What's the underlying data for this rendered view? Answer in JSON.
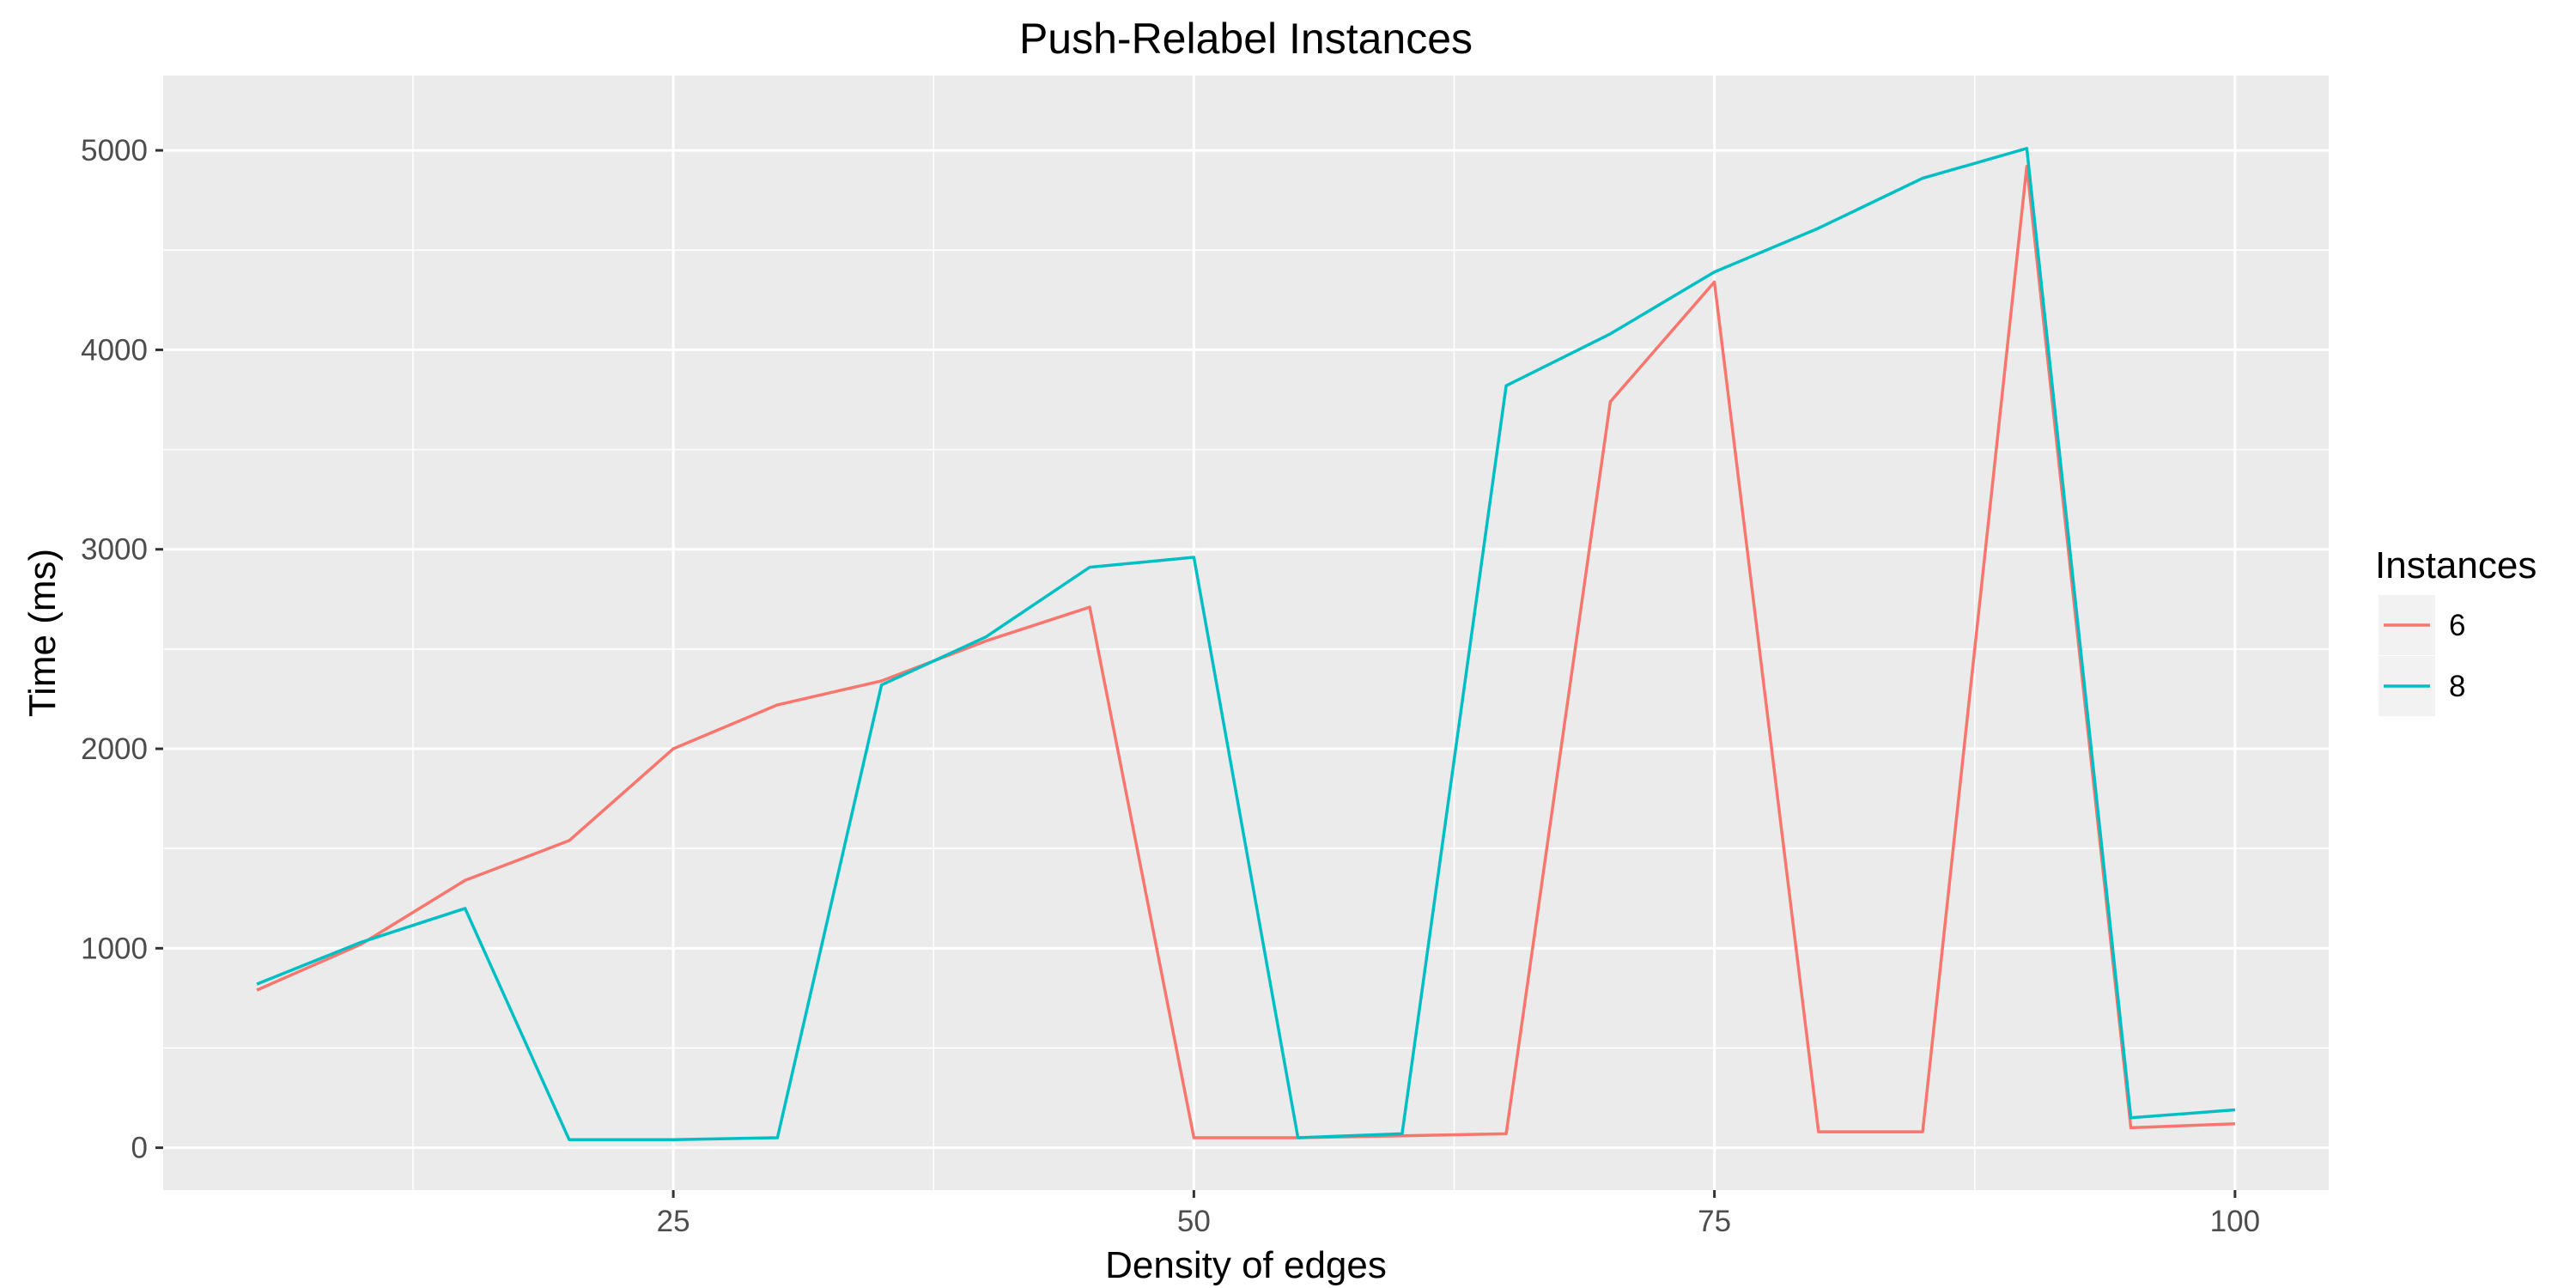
{
  "chart_data": {
    "type": "line",
    "title": "Push-Relabel Instances",
    "xlabel": "Density of edges",
    "ylabel": "Time (ms)",
    "xlim": [
      0.5,
      104.5
    ],
    "ylim": [
      -212.5,
      5375
    ],
    "x_ticks": [
      25,
      50,
      75,
      100
    ],
    "y_ticks": [
      0,
      1000,
      2000,
      3000,
      4000,
      5000
    ],
    "grid": true,
    "legend": {
      "title": "Instances",
      "position": "right"
    },
    "x": [
      5,
      10,
      15,
      20,
      25,
      30,
      35,
      40,
      45,
      50,
      55,
      60,
      65,
      70,
      75,
      80,
      85,
      90,
      95,
      100
    ],
    "series": [
      {
        "name": "6",
        "color": "#F8766D",
        "values": [
          790,
          1020,
          1340,
          1540,
          2000,
          2220,
          2340,
          2540,
          2710,
          50,
          50,
          60,
          70,
          3740,
          4340,
          80,
          80,
          4920,
          100,
          120
        ]
      },
      {
        "name": "8",
        "color": "#00BFC4",
        "values": [
          820,
          1030,
          1200,
          40,
          40,
          50,
          2320,
          2560,
          2910,
          2960,
          50,
          70,
          3820,
          4080,
          4390,
          4610,
          4860,
          5010,
          150,
          190
        ]
      }
    ]
  }
}
